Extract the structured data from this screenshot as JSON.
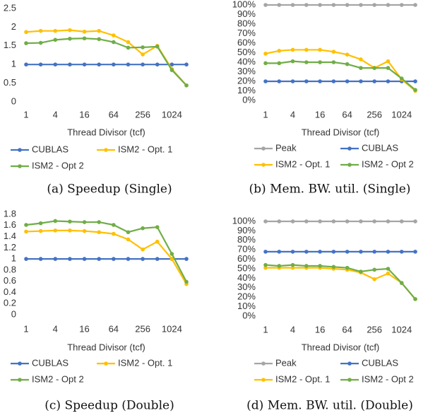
{
  "chart_data": [
    {
      "type": "line",
      "caption": "(a) Speedup (Single)",
      "x_label": "Thread Divisor (tcf)",
      "categories": [
        "1",
        null,
        "4",
        null,
        "16",
        null,
        "64",
        null,
        "256",
        null,
        "1024",
        null
      ],
      "ylim": [
        0,
        2.5
      ],
      "yticks": [
        0,
        0.5,
        1,
        1.5,
        2,
        2.5
      ],
      "grid": false,
      "series": [
        {
          "name": "CUBLAS",
          "color": "#4472c4",
          "values": [
            1,
            1,
            1,
            1,
            1,
            1,
            1,
            1,
            1,
            1,
            1,
            1
          ]
        },
        {
          "name": "ISM2 - Opt. 1",
          "color": "#ffc000",
          "values": [
            1.87,
            1.9,
            1.9,
            1.92,
            1.88,
            1.9,
            1.78,
            1.6,
            1.27,
            1.5,
            0.88,
            0.44
          ]
        },
        {
          "name": "ISM2 - Opt 2",
          "color": "#70ad47",
          "values": [
            1.57,
            1.58,
            1.66,
            1.69,
            1.7,
            1.68,
            1.6,
            1.45,
            1.46,
            1.48,
            0.85,
            0.44
          ]
        }
      ]
    },
    {
      "type": "line",
      "caption": "(b) Mem. BW. util. (Single)",
      "x_label": "Thread Divisor (tcf)",
      "categories": [
        "1",
        null,
        "4",
        null,
        "16",
        null,
        "64",
        null,
        "256",
        null,
        "1024",
        null
      ],
      "ylim": [
        0,
        100
      ],
      "grid": false,
      "yticks": [
        {
          "value": 0,
          "label": "0%"
        },
        {
          "value": 10,
          "label": "10%"
        },
        {
          "value": 20,
          "label": "20%"
        },
        {
          "value": 30,
          "label": "30%"
        },
        {
          "value": 40,
          "label": "40%"
        },
        {
          "value": 50,
          "label": "50%"
        },
        {
          "value": 60,
          "label": "60%"
        },
        {
          "value": 70,
          "label": "70%"
        },
        {
          "value": 80,
          "label": "80%"
        },
        {
          "value": 90,
          "label": "90%"
        },
        {
          "value": 100,
          "label": "100%"
        }
      ],
      "series": [
        {
          "name": "Peak",
          "color": "#a5a5a5",
          "values": [
            100,
            100,
            100,
            100,
            100,
            100,
            100,
            100,
            100,
            100,
            100,
            100
          ]
        },
        {
          "name": "CUBLAS",
          "color": "#4472c4",
          "values": [
            20,
            20,
            20,
            20,
            20,
            20,
            20,
            20,
            20,
            20,
            20,
            20
          ]
        },
        {
          "name": "ISM2 - Opt. 1",
          "color": "#ffc000",
          "values": [
            49,
            52,
            53,
            53,
            53,
            51,
            48,
            43,
            34,
            41,
            22,
            10
          ]
        },
        {
          "name": "ISM2 - Opt 2",
          "color": "#70ad47",
          "values": [
            39,
            39,
            41,
            40,
            40,
            40,
            38,
            34,
            34,
            34,
            23,
            11
          ]
        }
      ]
    },
    {
      "type": "line",
      "caption": "(c) Speedup (Double)",
      "x_label": "Thread Divisor (tcf)",
      "categories": [
        "1",
        null,
        "4",
        null,
        "16",
        null,
        "64",
        null,
        "256",
        null,
        "1024",
        null
      ],
      "ylim": [
        0,
        1.8
      ],
      "yticks": [
        0,
        0.2,
        0.4,
        0.6,
        0.8,
        1,
        1.2,
        1.4,
        1.6,
        1.8
      ],
      "grid": false,
      "series": [
        {
          "name": "CUBLAS",
          "color": "#4472c4",
          "values": [
            1,
            1,
            1,
            1,
            1,
            1,
            1,
            1,
            1,
            1,
            1,
            1
          ]
        },
        {
          "name": "ISM2 - Opt. 1",
          "color": "#ffc000",
          "values": [
            1.49,
            1.5,
            1.51,
            1.51,
            1.5,
            1.48,
            1.45,
            1.35,
            1.17,
            1.31,
            1.0,
            0.55
          ]
        },
        {
          "name": "ISM2 - Opt 2",
          "color": "#70ad47",
          "values": [
            1.61,
            1.64,
            1.68,
            1.67,
            1.66,
            1.66,
            1.61,
            1.48,
            1.55,
            1.57,
            1.09,
            0.59
          ]
        }
      ]
    },
    {
      "type": "line",
      "caption": "(d) Mem. BW. util. (Double)",
      "x_label": "Thread Divisor (tcf)",
      "categories": [
        "1",
        null,
        "4",
        null,
        "16",
        null,
        "64",
        null,
        "256",
        null,
        "1024",
        null
      ],
      "ylim": [
        0,
        100
      ],
      "grid": false,
      "yticks": [
        {
          "value": 0,
          "label": "0%"
        },
        {
          "value": 10,
          "label": "10%"
        },
        {
          "value": 20,
          "label": "20%"
        },
        {
          "value": 30,
          "label": "30%"
        },
        {
          "value": 40,
          "label": "40%"
        },
        {
          "value": 50,
          "label": "50%"
        },
        {
          "value": 60,
          "label": "60%"
        },
        {
          "value": 70,
          "label": "70%"
        },
        {
          "value": 80,
          "label": "80%"
        },
        {
          "value": 90,
          "label": "90%"
        },
        {
          "value": 100,
          "label": "100%"
        }
      ],
      "series": [
        {
          "name": "Peak",
          "color": "#a5a5a5",
          "values": [
            100,
            100,
            100,
            100,
            100,
            100,
            100,
            100,
            100,
            100,
            100,
            100
          ]
        },
        {
          "name": "CUBLAS",
          "color": "#4472c4",
          "values": [
            68,
            68,
            68,
            68,
            68,
            68,
            68,
            68,
            68,
            68,
            68,
            68
          ]
        },
        {
          "name": "ISM2 - Opt. 1",
          "color": "#ffc000",
          "values": [
            51,
            51,
            51,
            51,
            51,
            50,
            49,
            46,
            39,
            45,
            35,
            18
          ]
        },
        {
          "name": "ISM2 - Opt 2",
          "color": "#70ad47",
          "values": [
            54,
            53,
            54,
            53,
            53,
            52,
            51,
            47,
            49,
            50,
            35,
            18
          ]
        }
      ]
    }
  ]
}
